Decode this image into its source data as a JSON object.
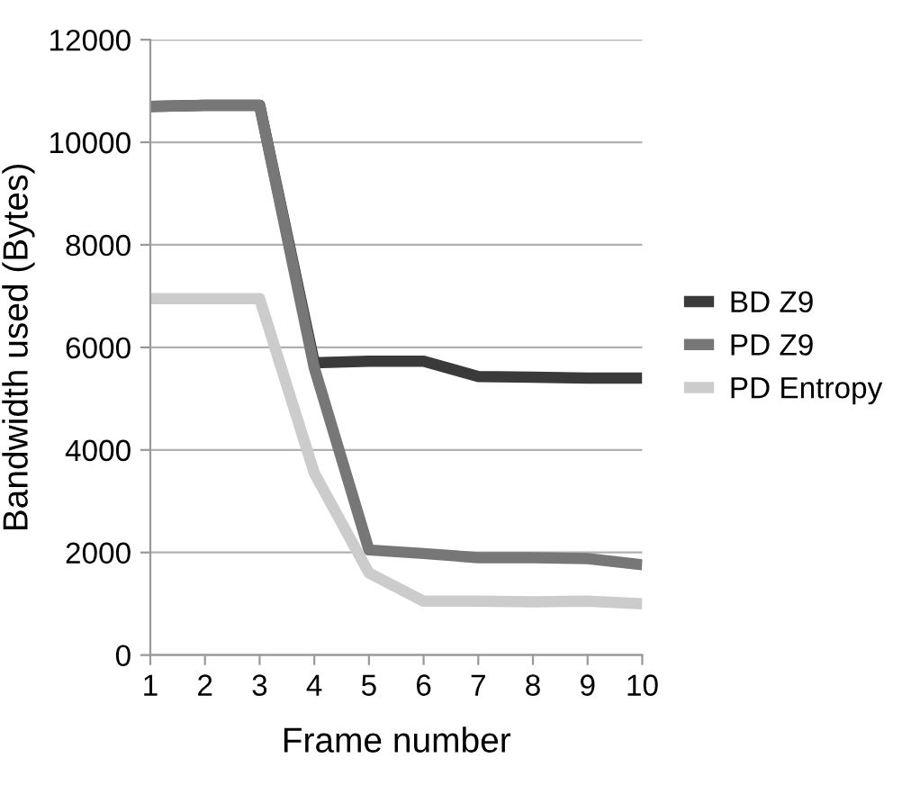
{
  "chart_data": {
    "type": "line",
    "xlabel": "Frame number",
    "ylabel": "Bandwidth used (Bytes)",
    "x": [
      1,
      2,
      3,
      4,
      5,
      6,
      7,
      8,
      9,
      10
    ],
    "series": [
      {
        "name": "BD Z9",
        "color": "#3a3a3a",
        "values": [
          10700,
          10720,
          10720,
          5700,
          5730,
          5730,
          5430,
          5420,
          5400,
          5400
        ]
      },
      {
        "name": "PD Z9",
        "color": "#777777",
        "values": [
          10700,
          10720,
          10720,
          5600,
          2050,
          1980,
          1900,
          1900,
          1880,
          1760
        ]
      },
      {
        "name": "PD Entropy",
        "color": "#cccccc",
        "values": [
          6950,
          6950,
          6950,
          3550,
          1600,
          1050,
          1050,
          1040,
          1050,
          1000
        ]
      }
    ],
    "xlim": [
      1,
      10
    ],
    "xticks": [
      1,
      2,
      3,
      4,
      5,
      6,
      7,
      8,
      9,
      10
    ],
    "ylim": [
      0,
      12000
    ],
    "yticks": [
      0,
      2000,
      4000,
      6000,
      8000,
      10000,
      12000
    ],
    "grid": "y",
    "legend": "right",
    "marker": "none",
    "line_style": "solid"
  }
}
